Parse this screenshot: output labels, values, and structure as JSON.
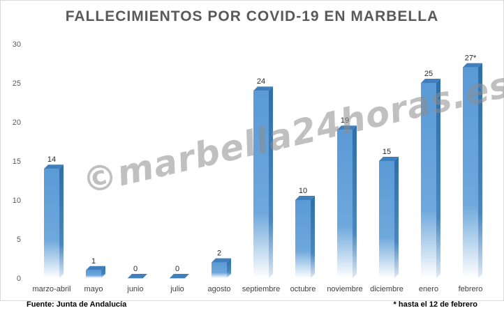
{
  "chart_data": {
    "type": "bar",
    "title": "FALLECIMIENTOS POR COVID-19 EN MARBELLA",
    "categories": [
      "marzo-abril",
      "mayo",
      "junio",
      "julio",
      "agosto",
      "septiembre",
      "octubre",
      "noviembre",
      "diciembre",
      "enero",
      "febrero"
    ],
    "values": [
      14,
      1,
      0,
      0,
      2,
      24,
      10,
      19,
      15,
      25,
      27
    ],
    "data_labels": [
      "14",
      "1",
      "0",
      "0",
      "2",
      "24",
      "10",
      "19",
      "15",
      "25",
      "27*"
    ],
    "ylim": [
      0,
      30
    ],
    "yticks": [
      0,
      5,
      10,
      15,
      20,
      25,
      30
    ],
    "grid": false,
    "bar_color": "#5b9bd5",
    "xlabel": "",
    "ylabel": ""
  },
  "watermark": "©marbella24horas.es",
  "source": "Fuente: Junta de Andalucía",
  "footnote": "* hasta el 12 de febrero"
}
